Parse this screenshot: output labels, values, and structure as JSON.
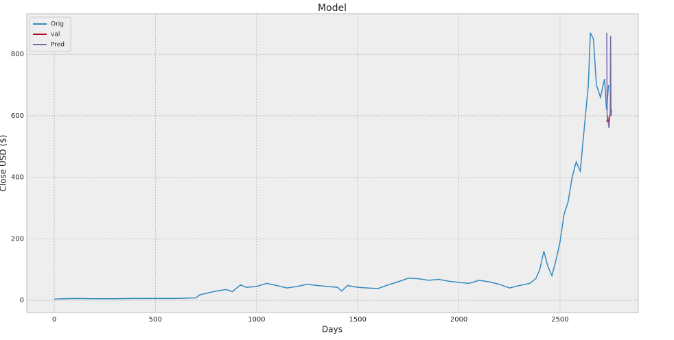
{
  "chart_data": {
    "type": "line",
    "title": "Model",
    "x_label": "Days",
    "y_label": "Close USD ($)",
    "xlim": [
      -136,
      2887
    ],
    "xticks": [
      0,
      500,
      1000,
      1500,
      2000,
      2500
    ],
    "ylim": [
      -40,
      932
    ],
    "yticks": [
      0,
      200,
      400,
      600,
      800
    ],
    "grid": true,
    "legend": "upper left",
    "series": [
      {
        "name": "Orig",
        "color": "#348ABD",
        "x": [
          0,
          100,
          200,
          300,
          400,
          500,
          600,
          700,
          720,
          800,
          850,
          880,
          920,
          950,
          1000,
          1050,
          1100,
          1150,
          1200,
          1250,
          1300,
          1350,
          1400,
          1420,
          1450,
          1500,
          1550,
          1600,
          1650,
          1700,
          1750,
          1800,
          1850,
          1900,
          1950,
          2000,
          2050,
          2100,
          2150,
          2200,
          2250,
          2300,
          2350,
          2380,
          2400,
          2420,
          2440,
          2460,
          2480,
          2500,
          2520,
          2540,
          2560,
          2580,
          2600,
          2620,
          2640,
          2650,
          2665,
          2680,
          2700,
          2720,
          2730,
          2740
        ],
        "values": [
          4,
          6,
          5,
          5,
          6,
          6,
          6,
          8,
          18,
          30,
          35,
          28,
          50,
          42,
          45,
          55,
          48,
          40,
          45,
          52,
          48,
          45,
          42,
          30,
          48,
          42,
          40,
          38,
          50,
          60,
          72,
          70,
          65,
          68,
          62,
          58,
          55,
          65,
          60,
          52,
          40,
          48,
          55,
          70,
          100,
          160,
          110,
          80,
          130,
          190,
          280,
          320,
          400,
          450,
          420,
          560,
          700,
          870,
          850,
          700,
          660,
          720,
          620,
          700
        ]
      },
      {
        "name": "val",
        "color": "#A60628",
        "x": [
          2732,
          2736,
          2740,
          2744,
          2748,
          2752,
          2755
        ],
        "values": [
          580,
          600,
          570,
          590,
          610,
          600,
          615
        ]
      },
      {
        "name": "Pred",
        "color": "#7A68A6",
        "x": [
          2731,
          2733,
          2738,
          2742,
          2745,
          2748,
          2750,
          2752,
          2755
        ],
        "values": [
          870,
          600,
          580,
          560,
          590,
          610,
          860,
          600,
          620
        ]
      }
    ]
  }
}
